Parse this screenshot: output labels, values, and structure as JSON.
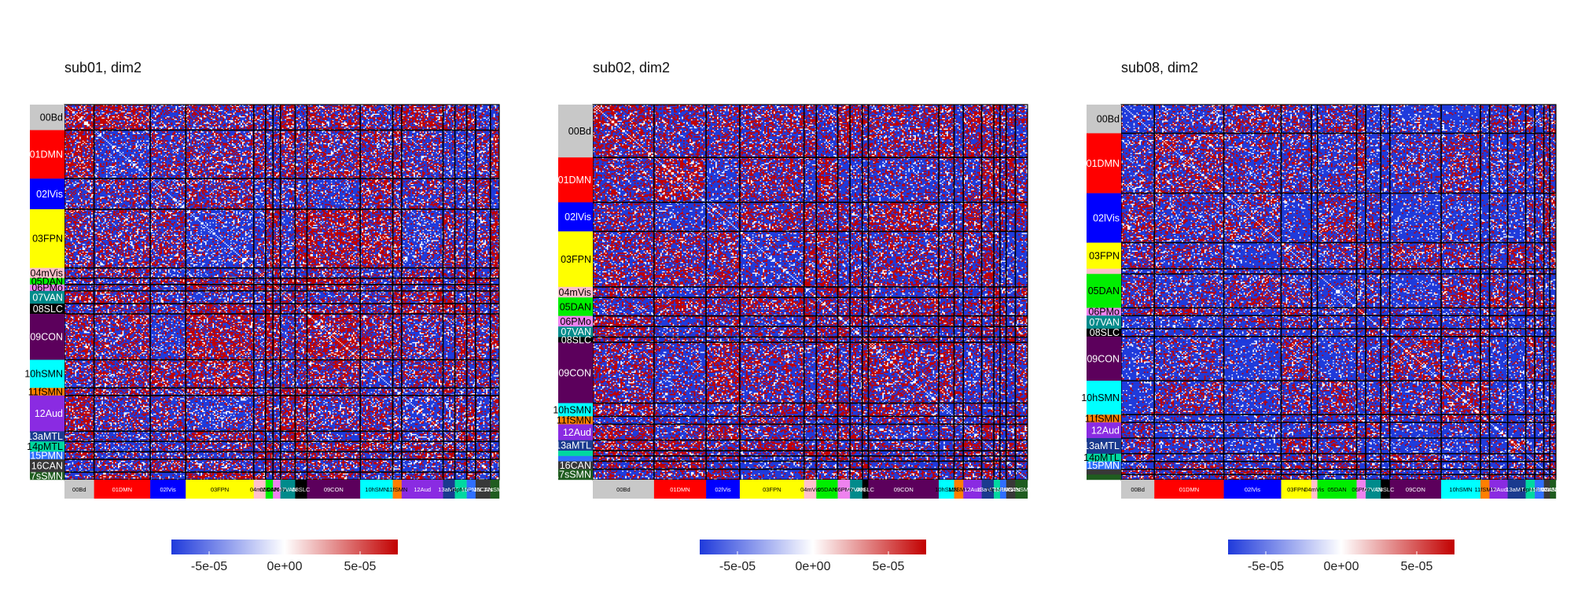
{
  "chart_data": [
    {
      "type": "heatmap",
      "title": "sub01, dim2",
      "networks": [
        "00Bd",
        "01DMN",
        "02lVis",
        "03FPN",
        "04mVis",
        "05DAN",
        "06PMo",
        "07VAN",
        "08SLC",
        "09CON",
        "10hSMN",
        "11fSMN",
        "12Aud",
        "13aMTL",
        "14pMTL",
        "15PMN",
        "16CAN",
        "17sSMN"
      ],
      "network_sizes": [
        20,
        38,
        24,
        46,
        8,
        5,
        5,
        10,
        8,
        36,
        22,
        6,
        28,
        8,
        8,
        6,
        10,
        6
      ],
      "show_side_labels": [
        true,
        true,
        true,
        true,
        true,
        true,
        true,
        true,
        true,
        true,
        true,
        true,
        true,
        true,
        true,
        true,
        true,
        true
      ],
      "show_bottom_labels": [
        true,
        true,
        true,
        true,
        true,
        true,
        true,
        true,
        true,
        true,
        true,
        true,
        true,
        true,
        true,
        true,
        true,
        true
      ],
      "colorbar": {
        "ticks": [
          "-5e-05",
          "0e+00",
          "5e-05"
        ],
        "tick_values": [
          -5e-05,
          0,
          5e-05
        ],
        "range": [
          -7.5e-05,
          7.5e-05
        ]
      },
      "value_style": {
        "blue_prob": 0.48,
        "red_prob": 0.34
      }
    },
    {
      "type": "heatmap",
      "title": "sub02, dim2",
      "networks": [
        "00Bd",
        "01DMN",
        "02lVis",
        "03FPN",
        "04mVis",
        "05DAN",
        "06PMo",
        "07VAN",
        "08SLC",
        "09CON",
        "10hSMN",
        "11fSMN",
        "12Aud",
        "13aMTL",
        "14pMTL",
        "15PMN",
        "16CAN",
        "17sSMN"
      ],
      "network_sizes": [
        40,
        34,
        22,
        42,
        8,
        14,
        8,
        8,
        4,
        46,
        10,
        6,
        12,
        8,
        4,
        4,
        6,
        8
      ],
      "show_side_labels": [
        true,
        true,
        true,
        true,
        true,
        true,
        true,
        true,
        true,
        true,
        true,
        true,
        true,
        true,
        false,
        false,
        true,
        true
      ],
      "show_bottom_labels": [
        true,
        true,
        true,
        true,
        true,
        true,
        true,
        true,
        true,
        true,
        true,
        true,
        true,
        true,
        true,
        true,
        true,
        true
      ],
      "colorbar": {
        "ticks": [
          "-5e-05",
          "0e+00",
          "5e-05"
        ],
        "tick_values": [
          -5e-05,
          0,
          5e-05
        ],
        "range": [
          -7.5e-05,
          7.5e-05
        ]
      },
      "value_style": {
        "blue_prob": 0.52,
        "red_prob": 0.33
      }
    },
    {
      "type": "heatmap",
      "title": "sub08, dim2",
      "networks": [
        "00Bd",
        "01DMN",
        "02lVis",
        "03FPN",
        "04mVis",
        "05DAN",
        "06PMo",
        "07VAN",
        "08SLC",
        "09CON",
        "10hSMN",
        "11fSMN",
        "12Aud",
        "13aMTL",
        "14pMTL",
        "15PMN",
        "16CAN",
        "17sSMN"
      ],
      "network_sizes": [
        22,
        46,
        38,
        20,
        4,
        26,
        6,
        10,
        6,
        34,
        26,
        6,
        12,
        12,
        6,
        6,
        4,
        4
      ],
      "show_side_labels": [
        true,
        true,
        true,
        true,
        false,
        true,
        true,
        true,
        true,
        true,
        true,
        true,
        true,
        true,
        true,
        true,
        false,
        false
      ],
      "show_bottom_labels": [
        true,
        true,
        true,
        true,
        true,
        true,
        true,
        true,
        true,
        true,
        true,
        true,
        true,
        true,
        true,
        true,
        true,
        true
      ],
      "colorbar": {
        "ticks": [
          "-5e-05",
          "0e+00",
          "5e-05"
        ],
        "tick_values": [
          -5e-05,
          0,
          5e-05
        ],
        "range": [
          -7.5e-05,
          7.5e-05
        ]
      },
      "value_style": {
        "blue_prob": 0.62,
        "red_prob": 0.22
      }
    }
  ],
  "network_colors": {
    "00Bd": "#c8c8c8",
    "01DMN": "#ff0000",
    "02lVis": "#0000ff",
    "03FPN": "#ffff00",
    "04mVis": "#ffc0cb",
    "05DAN": "#00ee00",
    "06PMo": "#ee82ee",
    "07VAN": "#008b8b",
    "08SLC": "#000000",
    "09CON": "#5c005c",
    "10hSMN": "#00ffff",
    "11fSMN": "#ff7f00",
    "12Aud": "#8a2be2",
    "13aMTL": "#1a3a8f",
    "14pMTL": "#00d8a0",
    "15PMN": "#2f6fff",
    "16CAN": "#383838",
    "17sSMN": "#1f5c1f"
  },
  "colorscale": [
    "#1f3adb",
    "#ffffff",
    "#c20000"
  ]
}
